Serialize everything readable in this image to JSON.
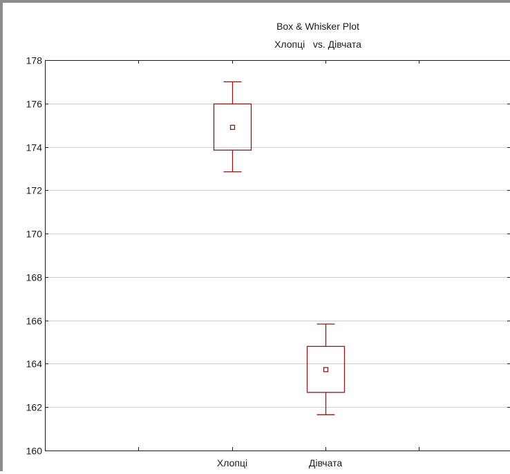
{
  "chart_data": {
    "type": "box",
    "title": "Box & Whisker Plot",
    "subtitle": "Хлопці   vs. Дівчата",
    "xlabel": "",
    "ylabel": "",
    "ylim": [
      160,
      178
    ],
    "yticks": [
      160,
      162,
      164,
      166,
      168,
      170,
      172,
      174,
      176,
      178
    ],
    "ytick_labels": [
      "160",
      "162",
      "164",
      "166",
      "168",
      "170",
      "172",
      "174",
      "176",
      "178"
    ],
    "grid": true,
    "categories": [
      "Хлопці",
      "Дівчата"
    ],
    "boxes": [
      {
        "category": "Хлопці",
        "whisker_low": 172.85,
        "box_low": 173.85,
        "center": 174.9,
        "box_high": 175.98,
        "whisker_high": 177.0
      },
      {
        "category": "Дівчата",
        "whisker_low": 161.65,
        "box_low": 162.68,
        "center": 163.73,
        "box_high": 164.8,
        "whisker_high": 165.83
      }
    ],
    "colors": {
      "box": "#8b1a1a",
      "grid": "#cfcfcf",
      "axis": "#1a1a1a",
      "frame": "#8c8c8c"
    }
  }
}
